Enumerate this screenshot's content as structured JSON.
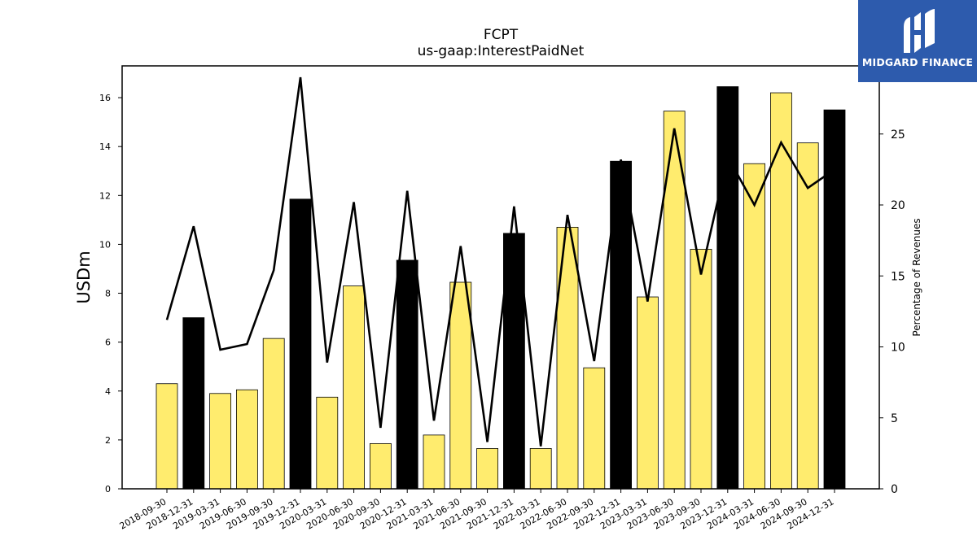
{
  "chart_data": {
    "type": "bar",
    "title": "FCPT",
    "subtitle": "us-gaap:InterestPaidNet",
    "ylabel": "USDm",
    "ylabel_right": "Percentage of Revenues",
    "ylim": [
      0,
      17.3
    ],
    "ylim_right": [
      0,
      29.8
    ],
    "yticks": [
      0,
      2,
      4,
      6,
      8,
      10,
      12,
      14,
      16
    ],
    "yticks_right": [
      0,
      5,
      10,
      15,
      20,
      25
    ],
    "categories": [
      "2018-09-30",
      "2018-12-31",
      "2019-03-31",
      "2019-06-30",
      "2019-09-30",
      "2019-12-31",
      "2020-03-31",
      "2020-06-30",
      "2020-09-30",
      "2020-12-31",
      "2021-03-31",
      "2021-06-30",
      "2021-09-30",
      "2021-12-31",
      "2022-03-31",
      "2022-06-30",
      "2022-09-30",
      "2022-12-31",
      "2023-03-31",
      "2023-06-30",
      "2023-09-30",
      "2023-12-31",
      "2024-03-31",
      "2024-06-30",
      "2024-09-30",
      "2024-12-31"
    ],
    "series": [
      {
        "kind": "bar",
        "axis": "left",
        "values": [
          4.3,
          7.0,
          3.9,
          4.05,
          6.15,
          11.85,
          3.75,
          8.3,
          1.85,
          9.35,
          2.2,
          8.45,
          1.65,
          10.45,
          1.65,
          10.7,
          4.95,
          13.4,
          7.85,
          15.45,
          9.8,
          16.45,
          13.3,
          16.2,
          14.15,
          15.5
        ],
        "highlight": [
          false,
          true,
          false,
          false,
          false,
          true,
          false,
          false,
          false,
          true,
          false,
          false,
          false,
          true,
          false,
          false,
          false,
          true,
          false,
          false,
          false,
          true,
          false,
          false,
          false,
          true
        ]
      },
      {
        "kind": "line",
        "axis": "right",
        "values": [
          11.9,
          18.5,
          9.8,
          10.2,
          15.4,
          29.0,
          8.9,
          20.2,
          4.3,
          21.0,
          4.8,
          17.1,
          3.3,
          19.9,
          3.0,
          19.3,
          9.0,
          23.2,
          13.2,
          25.4,
          15.1,
          23.4,
          20.0,
          24.4,
          21.2,
          22.5
        ]
      }
    ],
    "colors": {
      "bar_normal": "#ffec6e",
      "bar_highlight": "#000000",
      "line": "#000000"
    },
    "grid": false
  },
  "logo": {
    "text": "MIDGARD FINANCE",
    "icon": "midgard-logo-icon"
  }
}
